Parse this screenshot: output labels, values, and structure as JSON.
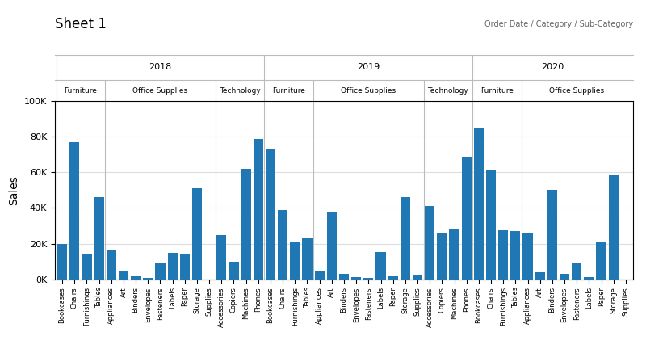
{
  "chart_data": {
    "type": "bar",
    "title": "Sheet 1",
    "annotation": "Order Date / Category / Sub-Category",
    "y_label": "Sales",
    "groups": [
      {
        "name": "2018",
        "groups": [
          {
            "name": "Furniture",
            "categories": [
              "Bookcases",
              "Chairs",
              "Furnishings",
              "Tables"
            ],
            "values": [
              20000,
              77000,
              14000,
              46000
            ]
          },
          {
            "name": "Office Supplies",
            "categories": [
              "Appliances",
              "Art",
              "Binders",
              "Envelopes",
              "Fasteners",
              "Labels",
              "Paper",
              "Storage",
              "Supplies"
            ],
            "values": [
              16000,
              4500,
              1500,
              700,
              9000,
              15000,
              14500,
              51000,
              0
            ]
          },
          {
            "name": "Technology",
            "categories": [
              "Accessories",
              "Copiers",
              "Machines",
              "Phones"
            ],
            "values": [
              25000,
              10000,
              62000,
              79000
            ]
          }
        ]
      },
      {
        "name": "2019",
        "groups": [
          {
            "name": "Furniture",
            "categories": [
              "Bookcases",
              "Chairs",
              "Furnishings",
              "Tables"
            ],
            "values": [
              73000,
              39000,
              21000,
              23500
            ]
          },
          {
            "name": "Office Supplies",
            "categories": [
              "Appliances",
              "Art",
              "Binders",
              "Envelopes",
              "Fasteners",
              "Labels",
              "Paper",
              "Storage",
              "Supplies"
            ],
            "values": [
              4700,
              38000,
              3000,
              1000,
              800,
              15200,
              1500,
              46000,
              2000
            ]
          },
          {
            "name": "Technology",
            "categories": [
              "Accessories",
              "Copiers",
              "Machines",
              "Phones"
            ],
            "values": [
              41000,
              26000,
              28000,
              69000
            ]
          }
        ]
      },
      {
        "name": "2020",
        "groups": [
          {
            "name": "Furniture",
            "categories": [
              "Bookcases",
              "Chairs",
              "Furnishings",
              "Tables"
            ],
            "values": [
              85000,
              61000,
              27500,
              27000
            ]
          },
          {
            "name": "Office Supplies",
            "categories": [
              "Appliances",
              "Art",
              "Binders",
              "Envelopes",
              "Fasteners",
              "Labels",
              "Paper",
              "Storage",
              "Supplies"
            ],
            "values": [
              26000,
              4000,
              50000,
              3000,
              9000,
              1200,
              21000,
              59000,
              0
            ]
          }
        ]
      }
    ],
    "ylim": [
      0,
      100000
    ],
    "yticks": [
      {
        "value": 0,
        "label": "0K"
      },
      {
        "value": 20000,
        "label": "20K"
      },
      {
        "value": 40000,
        "label": "40K"
      },
      {
        "value": 60000,
        "label": "60K"
      },
      {
        "value": 80000,
        "label": "80K"
      },
      {
        "value": 100000,
        "label": "100K"
      }
    ],
    "grid": true
  }
}
